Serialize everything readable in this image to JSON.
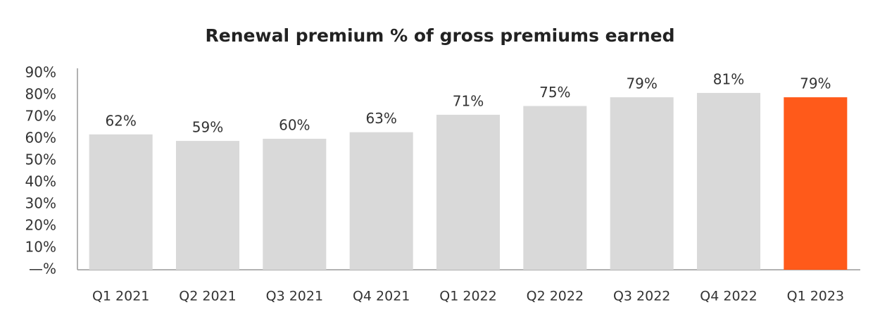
{
  "chart_data": {
    "type": "bar",
    "title": "Renewal premium % of gross premiums earned",
    "categories": [
      "Q1 2021",
      "Q2 2021",
      "Q3 2021",
      "Q4 2021",
      "Q1 2022",
      "Q2 2022",
      "Q3 2022",
      "Q4 2022",
      "Q1 2023"
    ],
    "values": [
      62,
      59,
      60,
      63,
      71,
      75,
      79,
      81,
      79
    ],
    "value_labels": [
      "62%",
      "59%",
      "60%",
      "63%",
      "71%",
      "75%",
      "79%",
      "81%",
      "79%"
    ],
    "colors": [
      "#d9d9d9",
      "#d9d9d9",
      "#d9d9d9",
      "#d9d9d9",
      "#d9d9d9",
      "#d9d9d9",
      "#d9d9d9",
      "#d9d9d9",
      "#ff5a1a"
    ],
    "ylim": [
      0,
      90
    ],
    "yticks": [
      {
        "value": 0,
        "label": "—%"
      },
      {
        "value": 10,
        "label": "10%"
      },
      {
        "value": 20,
        "label": "20%"
      },
      {
        "value": 30,
        "label": "30%"
      },
      {
        "value": 40,
        "label": "40%"
      },
      {
        "value": 50,
        "label": "50%"
      },
      {
        "value": 60,
        "label": "60%"
      },
      {
        "value": 70,
        "label": "70%"
      },
      {
        "value": 80,
        "label": "80%"
      },
      {
        "value": 90,
        "label": "90%"
      }
    ],
    "grid": false
  }
}
